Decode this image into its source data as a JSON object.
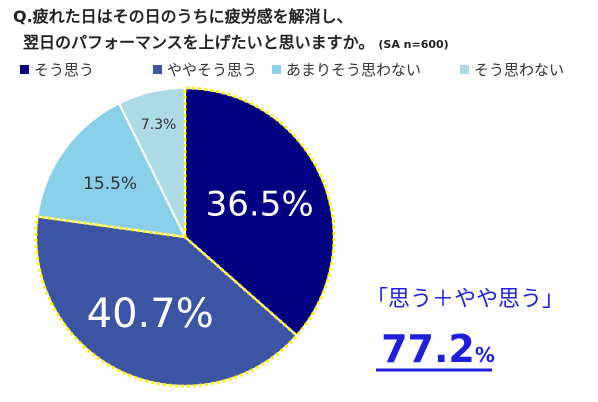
{
  "question": {
    "line1": "Q.疲れた日はその日のうちに疲労感を解消し、",
    "line2": "翌日のパフォーマンスを上げたいと思いますか。",
    "note": "(SA n=600)"
  },
  "chart_data": {
    "type": "pie",
    "title": "Q.疲れた日はその日のうちに疲労感を解消し、翌日のパフォーマンスを上げたいと思いますか。",
    "subtitle": "(SA n=600)",
    "unit": "%",
    "legend_position": "top",
    "start": "12 o'clock, clockwise",
    "slices": [
      {
        "name": "そう思う",
        "value": 36.5,
        "label": "36.5%",
        "color": "#000080"
      },
      {
        "name": "ややそう思う",
        "value": 40.7,
        "label": "40.7%",
        "color": "#3B54A4"
      },
      {
        "name": "あまりそう思わない",
        "value": 15.5,
        "label": "15.5%",
        "color": "#89CFEA"
      },
      {
        "name": "そう思わない",
        "value": 7.3,
        "label": "7.3%",
        "color": "#ACDAE6"
      }
    ]
  },
  "callout": {
    "label": "「思う＋やや思う」",
    "value": "77.2",
    "unit": "%",
    "color": "#1E1EDC"
  },
  "highlight_color": "#FFF200"
}
